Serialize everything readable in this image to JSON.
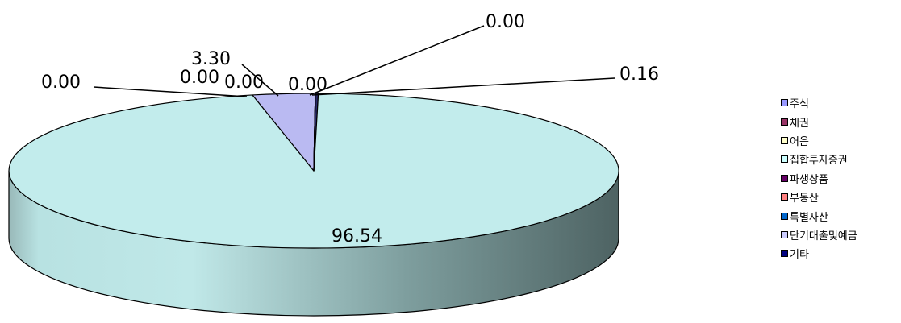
{
  "chart_data": {
    "type": "pie",
    "style": "3d",
    "categories": [
      "주식",
      "채권",
      "어음",
      "집합투자증권",
      "파생상품",
      "부동산",
      "특별자산",
      "단기대출및예금",
      "기타"
    ],
    "values": [
      3.3,
      0.0,
      0.0,
      96.54,
      0.0,
      0.0,
      0.0,
      0.16,
      0.0
    ],
    "value_labels": [
      "3.30",
      "0.00",
      "0.00",
      "96.54",
      "0.00",
      "0.00",
      "0.00",
      "0.16",
      "0.00"
    ],
    "colors": [
      "#9999ff",
      "#993366",
      "#ffffcc",
      "#ccffff",
      "#660066",
      "#ff8080",
      "#0066cc",
      "#ccccff",
      "#000080"
    ],
    "slice_fill": {
      "집합투자증권": {
        "top": "#c2ecec",
        "side_light": "#b8e2e2",
        "side_dark": "#4d6262"
      },
      "주식": {
        "top": "#babaf2"
      },
      "단기대출및예금": {
        "top": "#2a2a6a"
      }
    },
    "legend_position": "right",
    "title": "",
    "legend_items": [
      {
        "label": "주식",
        "color": "#9999ff"
      },
      {
        "label": "채권",
        "color": "#993366"
      },
      {
        "label": "어음",
        "color": "#ffffcc"
      },
      {
        "label": "집합투자증권",
        "color": "#ccffff"
      },
      {
        "label": "파생상품",
        "color": "#660066"
      },
      {
        "label": "부동산",
        "color": "#ff8080"
      },
      {
        "label": "특별자산",
        "color": "#0066cc"
      },
      {
        "label": "단기대출및예금",
        "color": "#ccccff"
      },
      {
        "label": "기타",
        "color": "#000080"
      }
    ]
  }
}
